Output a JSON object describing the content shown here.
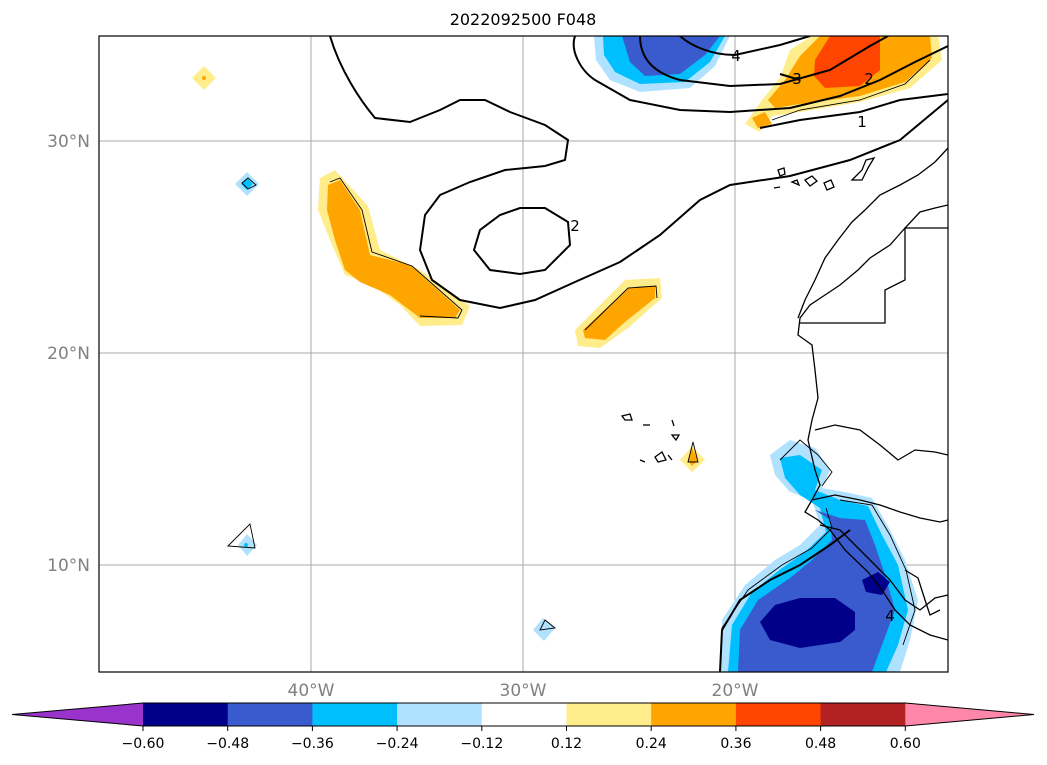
{
  "title": "2022092500 F048",
  "lat_labels": [
    "30°N",
    "20°N",
    "10°N"
  ],
  "lon_labels": [
    "40°W",
    "30°W",
    "20°W"
  ],
  "colorbar": {
    "labels": [
      "−0.60",
      "−0.48",
      "−0.36",
      "−0.24",
      "−0.12",
      "0.12",
      "0.24",
      "0.36",
      "0.48",
      "0.60"
    ],
    "colors": [
      "#9933cc",
      "#00008b",
      "#3a5bcd",
      "#00bfff",
      "#b0e2ff",
      "#ffffff",
      "#ffec8b",
      "#ffa500",
      "#ff4500",
      "#b22222",
      "#ff88aa"
    ]
  },
  "contour_labels": [
    "4",
    "3",
    "2",
    "1",
    "2",
    "4"
  ],
  "colors": {
    "pos_light": "#ffec8b",
    "pos_mid": "#ffa500",
    "pos_strong": "#ff4500",
    "neg_light": "#b0e2ff",
    "neg_mid": "#00bfff",
    "neg_strong": "#3a5bcd",
    "neg_extreme": "#00008b"
  }
}
